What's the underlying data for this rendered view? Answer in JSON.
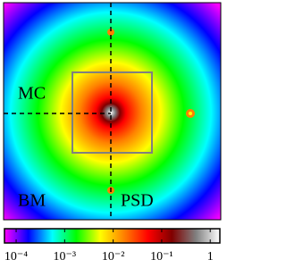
{
  "chart_data": {
    "type": "heatmap",
    "annotations": [
      "MC",
      "BM",
      "PSD"
    ],
    "colorbar": {
      "scale": "log",
      "clim": [
        5.75e-05,
        1.58
      ],
      "colors": [
        "#ff00ff",
        "#0000ff",
        "#00ffff",
        "#00ff00",
        "#ffff00",
        "#ff8000",
        "#ff0000",
        "#800000",
        "#808080",
        "#ffffff"
      ],
      "ticks": [
        {
          "value": 0.0001,
          "label": "10⁻⁴"
        },
        {
          "value": 0.001,
          "label": "10⁻³"
        },
        {
          "value": 0.01,
          "label": "10⁻²"
        },
        {
          "value": 0.1,
          "label": "10⁻¹"
        },
        1
      ]
    }
  }
}
